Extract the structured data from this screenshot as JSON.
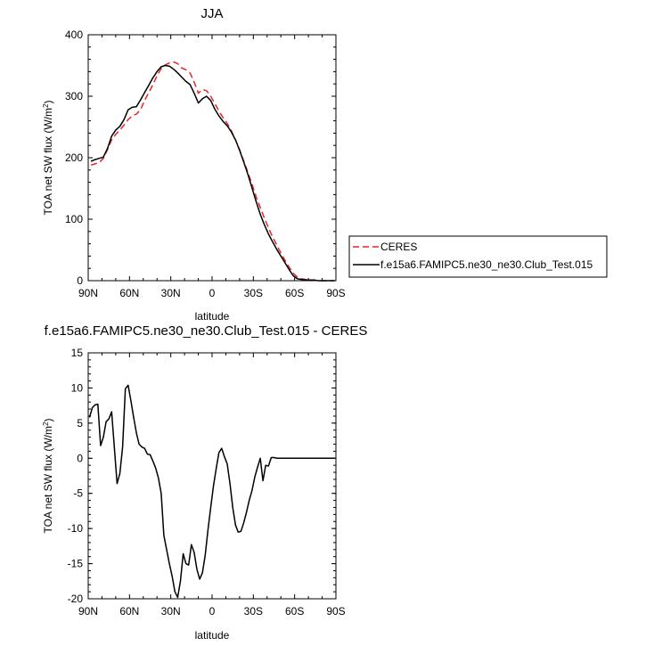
{
  "chart_data": [
    {
      "type": "line",
      "title": "JJA",
      "xlabel": "latitude",
      "ylabel": "TOA net SW flux (W/m",
      "ylabel_sup": "2",
      "ylabel_close": ")",
      "xlim": [
        90,
        -90
      ],
      "ylim": [
        0,
        400
      ],
      "xticks": [
        90,
        60,
        30,
        0,
        -30,
        -60,
        -90
      ],
      "xtick_labels": [
        "90N",
        "60N",
        "30N",
        "0",
        "30S",
        "60S",
        "90S"
      ],
      "yticks": [
        0,
        100,
        200,
        300,
        400
      ],
      "ytick_labels": [
        "0",
        "100",
        "200",
        "300",
        "400"
      ],
      "grid": false,
      "legend_position": "right",
      "series": [
        {
          "name": "CERES",
          "color": "#e8252a",
          "dash": "dashed",
          "x": [
            88,
            85,
            82,
            79,
            76,
            73,
            70,
            67,
            64,
            61,
            58,
            55,
            52,
            49,
            46,
            43,
            40,
            37,
            34,
            31,
            28,
            25,
            22,
            19,
            16,
            13,
            10,
            7,
            4,
            1,
            -2,
            -5,
            -8,
            -11,
            -14,
            -17,
            -20,
            -23,
            -26,
            -29,
            -32,
            -35,
            -38,
            -41,
            -44,
            -47,
            -50,
            -53,
            -56,
            -59,
            -62,
            -65,
            -68,
            -71,
            -74,
            -77,
            -80,
            -83,
            -86,
            -89
          ],
          "y": [
            188,
            190,
            192,
            199,
            213,
            229,
            238,
            245,
            253,
            262,
            268,
            271,
            278,
            293,
            306,
            319,
            333,
            345,
            351,
            354,
            356,
            353,
            346,
            343,
            338,
            323,
            305,
            311,
            309,
            300,
            288,
            276,
            265,
            256,
            244,
            229,
            213,
            195,
            176,
            157,
            137,
            119,
            102,
            86,
            71,
            58,
            45,
            33,
            22,
            12,
            6,
            3,
            2,
            1,
            1,
            0,
            0,
            0,
            0,
            0
          ]
        },
        {
          "name": "f.e15a6.FAMIPC5.ne30_ne30.Club_Test.015",
          "color": "#000000",
          "dash": "solid",
          "x": [
            88,
            85,
            82,
            79,
            76,
            73,
            70,
            67,
            64,
            61,
            58,
            55,
            52,
            49,
            46,
            43,
            40,
            37,
            34,
            31,
            28,
            25,
            22,
            19,
            16,
            13,
            10,
            7,
            4,
            1,
            -2,
            -5,
            -8,
            -11,
            -14,
            -17,
            -20,
            -23,
            -26,
            -29,
            -32,
            -35,
            -38,
            -41,
            -44,
            -47,
            -50,
            -53,
            -56,
            -59,
            -62,
            -65,
            -68,
            -71,
            -74,
            -77,
            -80,
            -83,
            -86,
            -89
          ],
          "y": [
            194,
            197,
            199,
            201,
            215,
            235,
            245,
            251,
            262,
            278,
            282,
            283,
            294,
            306,
            318,
            330,
            340,
            348,
            350,
            349,
            344,
            338,
            331,
            324,
            319,
            305,
            289,
            296,
            300,
            293,
            279,
            268,
            259,
            252,
            242,
            229,
            212,
            193,
            173,
            151,
            129,
            108,
            91,
            76,
            63,
            51,
            40,
            29,
            18,
            8,
            3,
            2,
            1,
            1,
            1,
            0,
            0,
            0,
            0,
            0
          ]
        }
      ]
    },
    {
      "type": "line",
      "title": "f.e15a6.FAMIPC5.ne30_ne30.Club_Test.015 - CERES",
      "xlabel": "latitude",
      "ylabel": "TOA net SW flux (W/m",
      "ylabel_sup": "2",
      "ylabel_close": ")",
      "xlim": [
        90,
        -90
      ],
      "ylim": [
        -20,
        15
      ],
      "xticks": [
        90,
        60,
        30,
        0,
        -30,
        -60,
        -90
      ],
      "xtick_labels": [
        "90N",
        "60N",
        "30N",
        "0",
        "30S",
        "60S",
        "90S"
      ],
      "yticks": [
        -20,
        -15,
        -10,
        -5,
        0,
        5,
        10,
        15
      ],
      "ytick_labels": [
        "-20",
        "-15",
        "-10",
        "-5",
        "0",
        "5",
        "10",
        "15"
      ],
      "grid": false,
      "series": [
        {
          "color": "#000000",
          "dash": "solid",
          "x": [
            89,
            87,
            85,
            83,
            81,
            79,
            77,
            75,
            73,
            71,
            69,
            67,
            65,
            63,
            61,
            59,
            57,
            55,
            53,
            51,
            49,
            47,
            45,
            43,
            41,
            39,
            37,
            35,
            33,
            31,
            29,
            27,
            25,
            23,
            21,
            19,
            17,
            15,
            13,
            11,
            9,
            7,
            5,
            3,
            1,
            -1,
            -3,
            -5,
            -7,
            -9,
            -11,
            -13,
            -15,
            -17,
            -19,
            -21,
            -23,
            -25,
            -27,
            -29,
            -31,
            -33,
            -35,
            -37,
            -39,
            -41,
            -43,
            -45,
            -47,
            -49,
            -51,
            -53,
            -55,
            -57,
            -59,
            -61,
            -63,
            -65,
            -67,
            -69,
            -71,
            -73,
            -75,
            -77,
            -79,
            -81,
            -83,
            -85,
            -87,
            -89
          ],
          "y": [
            5.8,
            7.2,
            7.6,
            7.7,
            1.8,
            3.0,
            5.2,
            5.6,
            6.6,
            1.6,
            -3.6,
            -2.2,
            1.6,
            9.9,
            10.4,
            8.2,
            5.8,
            3.6,
            2.0,
            1.6,
            1.4,
            0.6,
            0.5,
            -0.4,
            -1.4,
            -2.8,
            -5.0,
            -11.0,
            -13.0,
            -15.0,
            -16.8,
            -19.0,
            -19.8,
            -17.5,
            -13.6,
            -15.0,
            -15.2,
            -12.3,
            -13.4,
            -15.8,
            -17.2,
            -16.3,
            -13.8,
            -10.2,
            -7.0,
            -4.0,
            -1.5,
            0.8,
            1.4,
            0.2,
            -0.8,
            -3.6,
            -7.0,
            -9.5,
            -10.5,
            -10.4,
            -9.2,
            -7.7,
            -6.0,
            -4.6,
            -2.7,
            -1.3,
            0.0,
            -3.2,
            -1.0,
            -1.1,
            0.1,
            0.1,
            0.0,
            0.0,
            0.0,
            0.0,
            0.0,
            0.0,
            0.0,
            0.0,
            0.0,
            0.0,
            0.0,
            0.0,
            0.0,
            0.0,
            0.0,
            0.0,
            0.0,
            0.0,
            0.0,
            0.0,
            0.0,
            0.0
          ]
        }
      ]
    }
  ]
}
